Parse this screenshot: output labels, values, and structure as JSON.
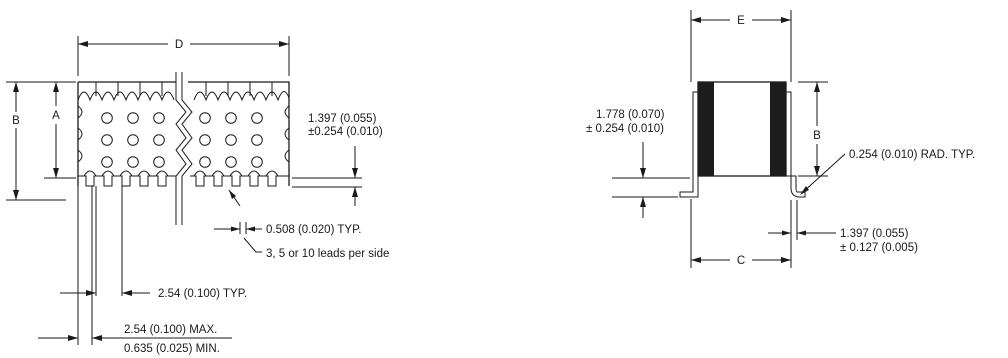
{
  "left_view": {
    "dims": {
      "D": "D",
      "A": "A",
      "B": "B",
      "height_line1": "1.397 (0.055)",
      "height_line2": "±0.254 (0.010)",
      "lead_width": "0.508 (0.020) TYP.",
      "leads_note": "3, 5 or 10 leads per side",
      "pitch": "2.54 (0.100) TYP.",
      "offset_max": "2.54 (0.100) MAX.",
      "offset_min": "0.635 (0.025) MIN."
    }
  },
  "right_view": {
    "dims": {
      "E": "E",
      "B": "B",
      "C": "C",
      "standoff_line1": "1.778 (0.070)",
      "standoff_line2": "± 0.254 (0.010)",
      "radius": "0.254 (0.010) RAD. TYP.",
      "lead_line1": "1.397 (0.055)",
      "lead_line2": "± 0.127 (0.005)"
    }
  }
}
